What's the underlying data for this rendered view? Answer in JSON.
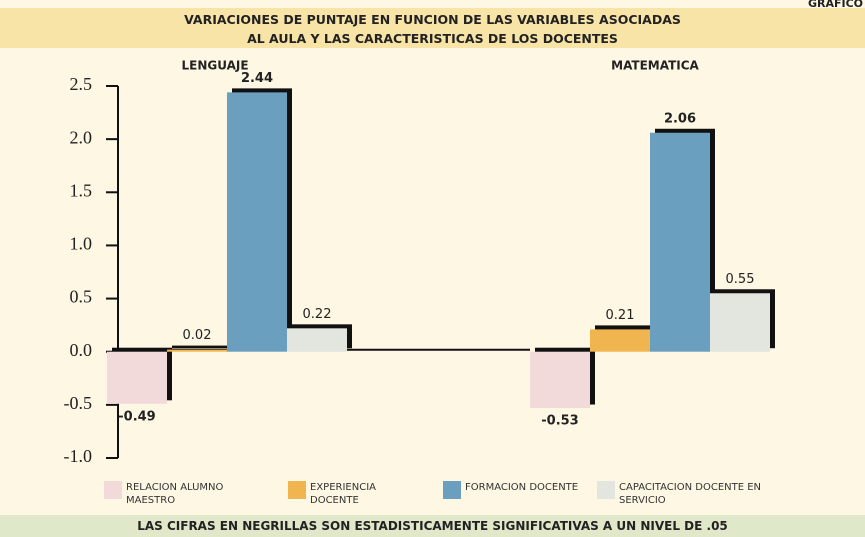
{
  "chart_data": {
    "type": "bar",
    "corner_label": "GRAFICO",
    "title": [
      "VARIACIONES DE PUNTAJE EN FUNCION DE LAS VARIABLES ASOCIADAS",
      "AL AULA Y LAS CARACTERISTICAS DE LOS DOCENTES"
    ],
    "categories": [
      "LENGUAJE",
      "MATEMATICA"
    ],
    "series": [
      {
        "name": "RELACION ALUMNO MAESTRO",
        "color": "#f2d9da",
        "bold": true,
        "values": [
          -0.49,
          -0.53
        ]
      },
      {
        "name": "EXPERIENCIA DOCENTE",
        "color": "#f0b54e",
        "bold": false,
        "values": [
          0.02,
          0.21
        ]
      },
      {
        "name": "FORMACION DOCENTE",
        "color": "#6a9fc0",
        "bold": true,
        "values": [
          2.44,
          2.06
        ]
      },
      {
        "name": "CAPACITACION DOCENTE EN SERVICIO",
        "color": "#e3e6df",
        "bold": false,
        "values": [
          0.22,
          0.55
        ]
      }
    ],
    "ylim": [
      -1.0,
      2.5
    ],
    "yticks": [
      {
        "value": -1.0,
        "label": "-1.0"
      },
      -0.5,
      {
        "value": 0,
        "label": "0.0"
      },
      0.5,
      {
        "value": 1.0,
        "label": "1.0"
      },
      1.5,
      {
        "value": 2.0,
        "label": "2.0"
      },
      2.5
    ],
    "footnote": "LAS CIFRAS EN NEGRILLAS SON ESTADISTICAMENTE SIGNIFICATIVAS A UN NIVEL DE .05"
  }
}
